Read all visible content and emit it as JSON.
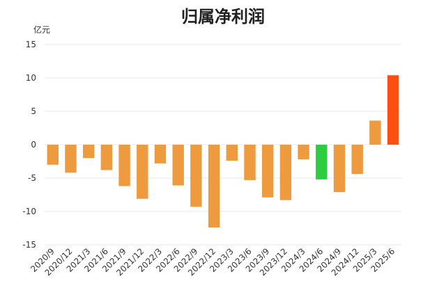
{
  "chart_data": {
    "type": "bar",
    "title": "归属净利润",
    "y_unit": "亿元",
    "ylim": [
      -15,
      15
    ],
    "y_ticks": [
      15,
      10,
      5,
      0,
      -5,
      -10,
      -15
    ],
    "grid": true,
    "categories": [
      "2020/9",
      "2020/12",
      "2021/3",
      "2021/6",
      "2021/9",
      "2021/12",
      "2022/3",
      "2022/6",
      "2022/9",
      "2022/12",
      "2023/3",
      "2023/6",
      "2023/9",
      "2023/12",
      "2024/3",
      "2024/6",
      "2024/9",
      "2024/12",
      "2025/3",
      "2025/6"
    ],
    "values": [
      -3.0,
      -4.2,
      -2.0,
      -3.8,
      -6.2,
      -8.1,
      -2.8,
      -6.1,
      -9.3,
      -12.4,
      -2.4,
      -5.3,
      -7.9,
      -8.3,
      -2.2,
      -5.2,
      -7.1,
      -4.4,
      3.6,
      10.4
    ],
    "colors": [
      "#EE9A3F",
      "#EE9A3F",
      "#EE9A3F",
      "#EE9A3F",
      "#EE9A3F",
      "#EE9A3F",
      "#EE9A3F",
      "#EE9A3F",
      "#EE9A3F",
      "#EE9A3F",
      "#EE9A3F",
      "#EE9A3F",
      "#EE9A3F",
      "#EE9A3F",
      "#EE9A3F",
      "#2ECC40",
      "#EE9A3F",
      "#EE9A3F",
      "#EE9A3F",
      "#FF4E11"
    ]
  }
}
